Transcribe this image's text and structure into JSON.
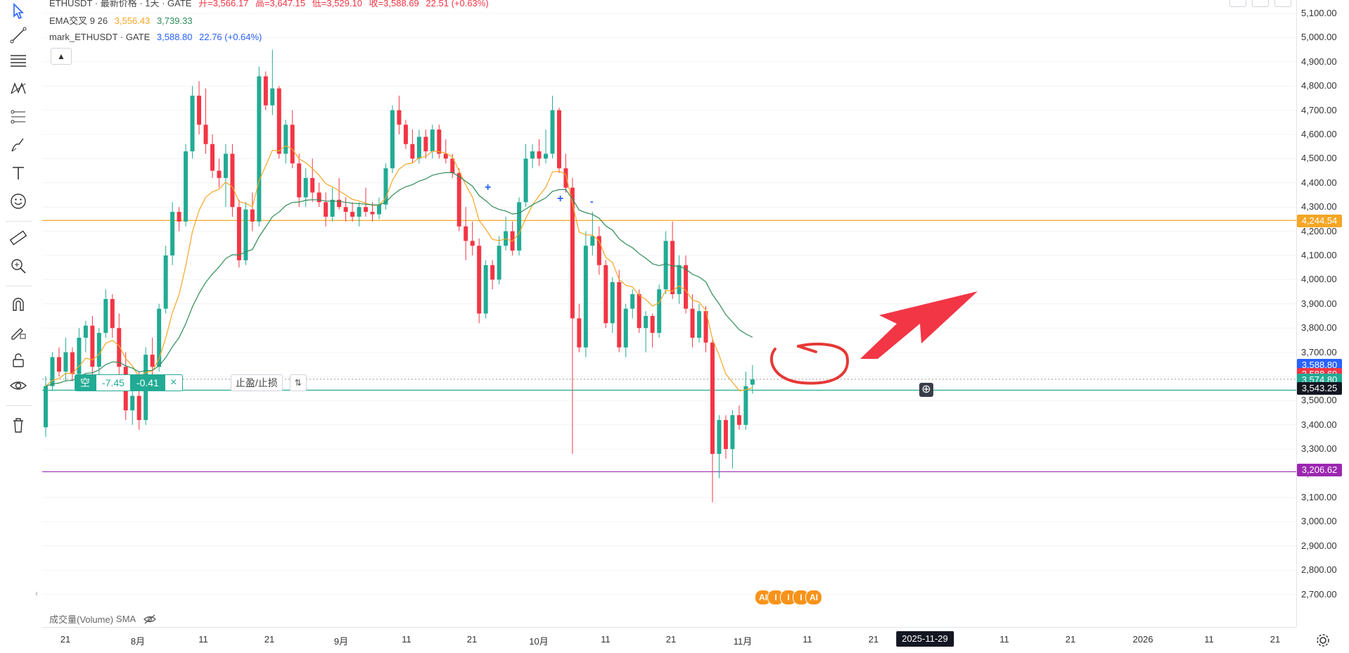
{
  "header": {
    "title_line": "ETHUSDT · 最新价格 · 1天 · GATE",
    "open": "开=3,566.17",
    "high": "高=3,647.15",
    "low": "低=3,529.10",
    "close": "收=3,588.69",
    "change": "22.51 (+0.63%)"
  },
  "legend": {
    "ema_name": "EMA交叉 9 26",
    "ema_fast": "3,556.43",
    "ema_slow": "3,739.33",
    "mark_name": "mark_ETHUSDT · GATE",
    "mark_price": "3,588.80",
    "mark_change": "22.76 (+0.64%)"
  },
  "position": {
    "side": "空",
    "pnl": "-7.45",
    "qty": "-0.41",
    "close": "×",
    "tpsl": "止盈/止损",
    "swap": "⇅"
  },
  "price_axis": {
    "ticks": [
      "5,100.00",
      "5,000.00",
      "4,900.00",
      "4,800.00",
      "4,700.00",
      "4,600.00",
      "4,500.00",
      "4,400.00",
      "4,300.00",
      "4,200.00",
      "4,100.00",
      "4,000.00",
      "3,900.00",
      "3,800.00",
      "3,700.00",
      "3,600.00",
      "3,500.00",
      "3,400.00",
      "3,300.00",
      "3,200.00",
      "3,100.00",
      "3,000.00",
      "2,900.00",
      "2,800.00",
      "2,700.00"
    ],
    "labels": [
      {
        "text": "4,244.54",
        "color": "#f5a623"
      },
      {
        "text": "3,588.80",
        "color": "#2962ff"
      },
      {
        "text": "3,588.69",
        "color": "#f23645"
      },
      {
        "text": "3,574.80",
        "color": "#22ab94"
      },
      {
        "text": "3,543.25",
        "color": "#131722"
      },
      {
        "text": "3,206.62",
        "color": "#9c27b0"
      }
    ]
  },
  "time_axis": {
    "ticks": [
      "21",
      "8月",
      "11",
      "21",
      "9月",
      "11",
      "21",
      "10月",
      "11",
      "21",
      "11月",
      "11",
      "21",
      "11",
      "21",
      "2026",
      "11",
      "21"
    ],
    "cursor": "2025-11-29"
  },
  "volume": {
    "name": "成交量(Volume)",
    "ma": "SMA"
  },
  "ai_badges": [
    "AI",
    "I",
    "I",
    "I",
    "AI"
  ],
  "colors": {
    "up": "#22ab94",
    "down": "#f23645",
    "ema_fast": "#f5a623",
    "ema_slow": "#2e8b57",
    "resistance": "#f5a623",
    "support": "#9c27b0",
    "annotation": "#e53935"
  },
  "chart_data": {
    "type": "candlestick",
    "symbol": "ETHUSDT",
    "interval": "1D",
    "ylim": [
      2650,
      5150
    ],
    "horizontal_lines": [
      {
        "price": 4244.54
      },
      {
        "price": 3206.62
      },
      {
        "price": 3543.25
      }
    ],
    "candles": [
      [
        3390,
        3600,
        3350,
        3560
      ],
      [
        3560,
        3700,
        3540,
        3680
      ],
      [
        3680,
        3720,
        3600,
        3620
      ],
      [
        3620,
        3760,
        3580,
        3700
      ],
      [
        3700,
        3720,
        3580,
        3610
      ],
      [
        3610,
        3800,
        3580,
        3760
      ],
      [
        3760,
        3830,
        3700,
        3810
      ],
      [
        3810,
        3850,
        3600,
        3640
      ],
      [
        3640,
        3800,
        3600,
        3780
      ],
      [
        3780,
        3960,
        3760,
        3920
      ],
      [
        3920,
        3940,
        3760,
        3800
      ],
      [
        3800,
        3860,
        3600,
        3640
      ],
      [
        3640,
        3700,
        3420,
        3460
      ],
      [
        3460,
        3560,
        3400,
        3520
      ],
      [
        3520,
        3620,
        3380,
        3420
      ],
      [
        3420,
        3720,
        3400,
        3690
      ],
      [
        3690,
        3760,
        3600,
        3640
      ],
      [
        3640,
        3900,
        3620,
        3880
      ],
      [
        3880,
        4140,
        3860,
        4100
      ],
      [
        4100,
        4320,
        4060,
        4280
      ],
      [
        4280,
        4300,
        4200,
        4240
      ],
      [
        4240,
        4560,
        4220,
        4530
      ],
      [
        4530,
        4800,
        4500,
        4760
      ],
      [
        4760,
        4820,
        4600,
        4640
      ],
      [
        4640,
        4790,
        4520,
        4560
      ],
      [
        4560,
        4600,
        4420,
        4450
      ],
      [
        4450,
        4500,
        4380,
        4420
      ],
      [
        4420,
        4560,
        4300,
        4520
      ],
      [
        4520,
        4560,
        4260,
        4300
      ],
      [
        4300,
        4330,
        4050,
        4080
      ],
      [
        4080,
        4320,
        4060,
        4290
      ],
      [
        4290,
        4360,
        4200,
        4240
      ],
      [
        4240,
        4880,
        4220,
        4840
      ],
      [
        4840,
        4860,
        4700,
        4720
      ],
      [
        4720,
        4950,
        4680,
        4790
      ],
      [
        4790,
        4800,
        4500,
        4520
      ],
      [
        4520,
        4660,
        4480,
        4640
      ],
      [
        4640,
        4700,
        4460,
        4480
      ],
      [
        4480,
        4520,
        4300,
        4340
      ],
      [
        4340,
        4460,
        4300,
        4420
      ],
      [
        4420,
        4500,
        4320,
        4360
      ],
      [
        4360,
        4400,
        4300,
        4320
      ],
      [
        4320,
        4360,
        4220,
        4260
      ],
      [
        4260,
        4380,
        4240,
        4330
      ],
      [
        4330,
        4420,
        4290,
        4300
      ],
      [
        4300,
        4340,
        4240,
        4280
      ],
      [
        4280,
        4320,
        4240,
        4260
      ],
      [
        4260,
        4320,
        4220,
        4300
      ],
      [
        4300,
        4380,
        4260,
        4280
      ],
      [
        4280,
        4320,
        4240,
        4270
      ],
      [
        4270,
        4340,
        4250,
        4310
      ],
      [
        4310,
        4480,
        4290,
        4460
      ],
      [
        4460,
        4720,
        4440,
        4700
      ],
      [
        4700,
        4760,
        4600,
        4640
      ],
      [
        4640,
        4660,
        4540,
        4560
      ],
      [
        4560,
        4620,
        4480,
        4500
      ],
      [
        4500,
        4620,
        4480,
        4590
      ],
      [
        4590,
        4620,
        4500,
        4530
      ],
      [
        4530,
        4640,
        4500,
        4620
      ],
      [
        4620,
        4640,
        4500,
        4520
      ],
      [
        4520,
        4580,
        4480,
        4500
      ],
      [
        4500,
        4520,
        4420,
        4440
      ],
      [
        4440,
        4460,
        4200,
        4220
      ],
      [
        4220,
        4300,
        4080,
        4160
      ],
      [
        4160,
        4240,
        4100,
        4140
      ],
      [
        4140,
        4170,
        3820,
        3860
      ],
      [
        3860,
        4080,
        3840,
        4060
      ],
      [
        4060,
        4080,
        3960,
        4000
      ],
      [
        4000,
        4180,
        3980,
        4140
      ],
      [
        4140,
        4260,
        4120,
        4200
      ],
      [
        4200,
        4240,
        4100,
        4120
      ],
      [
        4120,
        4340,
        4100,
        4320
      ],
      [
        4320,
        4560,
        4300,
        4500
      ],
      [
        4500,
        4560,
        4460,
        4530
      ],
      [
        4530,
        4580,
        4470,
        4500
      ],
      [
        4500,
        4620,
        4480,
        4520
      ],
      [
        4520,
        4760,
        4500,
        4700
      ],
      [
        4700,
        4710,
        4440,
        4460
      ],
      [
        4460,
        4520,
        4360,
        4380
      ],
      [
        4380,
        4420,
        3280,
        3840
      ],
      [
        3840,
        3900,
        3700,
        3720
      ],
      [
        3720,
        4200,
        3680,
        4140
      ],
      [
        4140,
        4280,
        4100,
        4180
      ],
      [
        4180,
        4220,
        4020,
        4060
      ],
      [
        4060,
        4080,
        3800,
        3820
      ],
      [
        3820,
        4010,
        3780,
        3990
      ],
      [
        3990,
        4040,
        3700,
        3720
      ],
      [
        3720,
        3900,
        3680,
        3880
      ],
      [
        3880,
        3960,
        3840,
        3940
      ],
      [
        3940,
        3960,
        3780,
        3800
      ],
      [
        3800,
        3870,
        3700,
        3850
      ],
      [
        3850,
        3860,
        3720,
        3780
      ],
      [
        3780,
        3980,
        3760,
        3960
      ],
      [
        3960,
        4200,
        3940,
        4160
      ],
      [
        4160,
        4240,
        3920,
        3940
      ],
      [
        3940,
        4100,
        3900,
        4060
      ],
      [
        4060,
        4100,
        3860,
        3880
      ],
      [
        3880,
        3940,
        3720,
        3760
      ],
      [
        3760,
        3900,
        3740,
        3870
      ],
      [
        3870,
        3890,
        3700,
        3740
      ],
      [
        3740,
        3760,
        3080,
        3280
      ],
      [
        3280,
        3440,
        3180,
        3420
      ],
      [
        3420,
        3440,
        3260,
        3300
      ],
      [
        3300,
        3460,
        3220,
        3440
      ],
      [
        3440,
        3480,
        3380,
        3400
      ],
      [
        3400,
        3620,
        3380,
        3560
      ],
      [
        3566,
        3647,
        3529,
        3588
      ]
    ]
  }
}
